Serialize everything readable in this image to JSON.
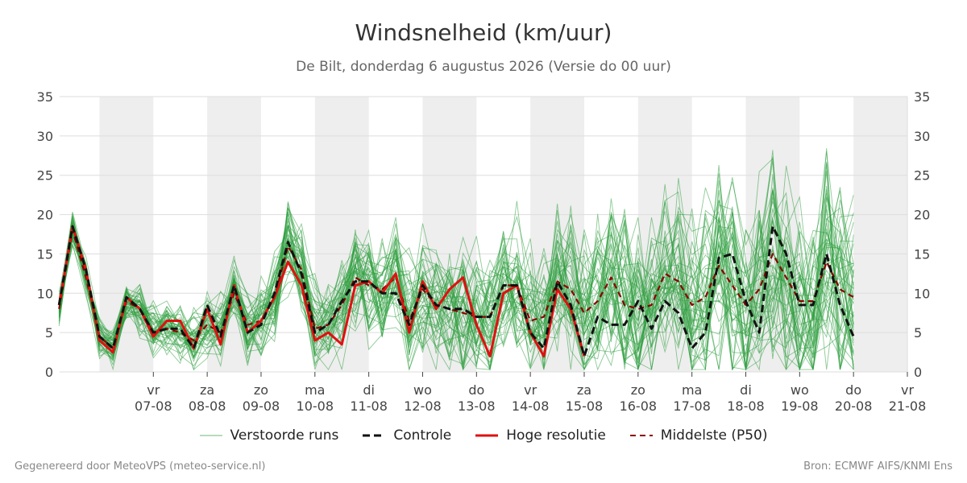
{
  "title": "Windsnelheid (km/uur)",
  "subtitle": "De Bilt, donderdag  6 augustus 2026 (Versie do 00 uur)",
  "footer_left": "Gegenereerd door MeteoVPS (meteo-service.nl)",
  "footer_right": "Bron: ECMWF AIFS/KNMI Ens",
  "colors": {
    "ensemble": "#2e9e3e",
    "control": "#111111",
    "highres": "#e01010",
    "median": "#8b0000",
    "band": "#eeeeee",
    "grid": "#dddddd"
  },
  "chart_data": {
    "type": "line",
    "ylim": [
      0,
      35
    ],
    "yticks": [
      0,
      5,
      10,
      15,
      20,
      25,
      30,
      35
    ],
    "xlim": [
      -0.74,
      15
    ],
    "grid": true,
    "legend_position": "bottom",
    "xtick_labels": [
      {
        "day": "vr",
        "date": "07-08"
      },
      {
        "day": "za",
        "date": "08-08"
      },
      {
        "day": "zo",
        "date": "09-08"
      },
      {
        "day": "ma",
        "date": "10-08"
      },
      {
        "day": "di",
        "date": "11-08"
      },
      {
        "day": "wo",
        "date": "12-08"
      },
      {
        "day": "do",
        "date": "13-08"
      },
      {
        "day": "vr",
        "date": "14-08"
      },
      {
        "day": "za",
        "date": "15-08"
      },
      {
        "day": "zo",
        "date": "16-08"
      },
      {
        "day": "ma",
        "date": "17-08"
      },
      {
        "day": "di",
        "date": "18-08"
      },
      {
        "day": "wo",
        "date": "19-08"
      },
      {
        "day": "do",
        "date": "20-08"
      },
      {
        "day": "vr",
        "date": "21-08"
      }
    ],
    "x_start": -0.75,
    "x_step": 0.25,
    "series": [
      {
        "name": "Verstoorde runs",
        "style": "ensemble",
        "values": []
      },
      {
        "name": "Controle",
        "style": "control",
        "values": [
          8.5,
          18.5,
          13,
          4.5,
          3,
          9.5,
          8,
          5,
          5.5,
          5.5,
          3,
          8.5,
          4.5,
          11,
          5,
          6,
          10,
          16.5,
          12.5,
          5,
          6,
          9,
          11.5,
          11.5,
          10,
          10,
          6,
          11,
          8.5,
          8,
          8,
          7,
          7,
          11,
          11,
          5,
          3,
          11.5,
          8.5,
          2,
          7,
          6,
          6,
          9,
          5.5,
          9,
          7.5,
          3,
          5,
          14.5,
          15,
          9,
          5,
          18.5,
          15,
          8.5,
          8.5,
          15,
          8.5,
          4.5
        ]
      },
      {
        "name": "Hoge resolutie",
        "style": "highres",
        "values": [
          8.5,
          18.5,
          13,
          4,
          2.5,
          9.5,
          8,
          4.5,
          6.5,
          6.5,
          3,
          8,
          3.5,
          11,
          5,
          6.5,
          9.5,
          14,
          11,
          4,
          5,
          3.5,
          11,
          11.5,
          10,
          12.5,
          5,
          11.5,
          8,
          10.5,
          12,
          6,
          2,
          10,
          11,
          5,
          2,
          10.5,
          8,
          2
        ]
      },
      {
        "name": "Middelste (P50)",
        "style": "median",
        "values": [
          8,
          18,
          12,
          4.5,
          3,
          9,
          8,
          5,
          5.5,
          5,
          4,
          6,
          5,
          10,
          6,
          6.5,
          9.5,
          16,
          13,
          5.5,
          6,
          8.5,
          12,
          11,
          10.5,
          12,
          6.5,
          10.5,
          8.5,
          8,
          7.5,
          7,
          7,
          11,
          11,
          6.5,
          7,
          11.5,
          10.5,
          7.5,
          9,
          12,
          8.5,
          8,
          8.5,
          12.5,
          11.5,
          8.5,
          9.5,
          13.5,
          11,
          8.5,
          10.5,
          15,
          12,
          9,
          9,
          14,
          10.5,
          9.5
        ]
      }
    ]
  }
}
